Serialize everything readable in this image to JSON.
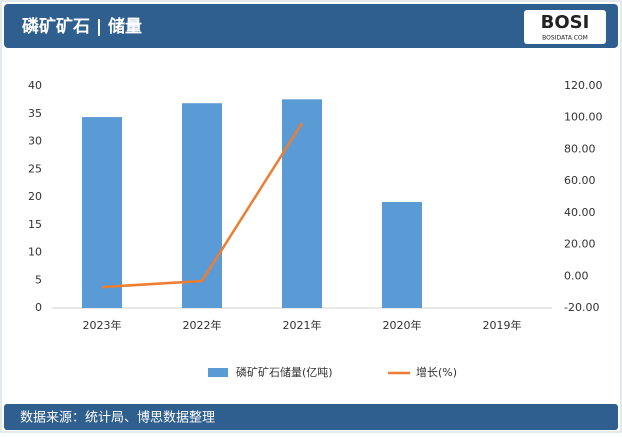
{
  "chart_data": {
    "type": "bar",
    "title": "磷矿矿石 | 储量",
    "categories": [
      "2023年",
      "2022年",
      "2021年",
      "2020年",
      "2019年"
    ],
    "series": [
      {
        "name": "磷矿矿石储量(亿吨)",
        "type": "bar",
        "color": "#5b9bd5",
        "values": [
          34.4,
          36.9,
          37.6,
          19.1,
          null
        ]
      },
      {
        "name": "增长(%)",
        "type": "line",
        "axis": "y2",
        "color": "#ed7d31",
        "values": [
          -6.8,
          -3,
          96.6,
          null,
          null
        ]
      }
    ],
    "ylim": [
      0,
      40
    ],
    "yticks": [
      0,
      5,
      10,
      15,
      20,
      25,
      30,
      35,
      40
    ],
    "y2lim": [
      -20,
      120
    ],
    "y2ticks": [
      {
        "value": -20,
        "label": "-20.00"
      },
      {
        "value": 0,
        "label": "0.00"
      },
      {
        "value": 20,
        "label": "20.00"
      },
      {
        "value": 40,
        "label": "40.00"
      },
      {
        "value": 60,
        "label": "60.00"
      },
      {
        "value": 80,
        "label": "80.00"
      },
      {
        "value": 100,
        "label": "100.00"
      },
      {
        "value": 120,
        "label": "120.00"
      }
    ],
    "legend": "bottom"
  },
  "logo": {
    "text": "BOSI",
    "subtext": "BOSIDATA.COM"
  },
  "footer": {
    "source": "数据来源：统计局、博思数据整理"
  }
}
